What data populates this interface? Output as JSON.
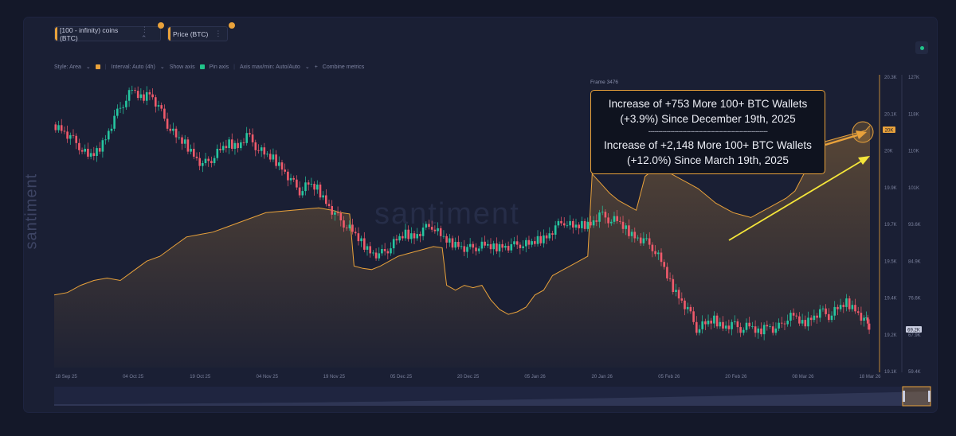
{
  "metrics": [
    {
      "label": "[100 - infinity) coins (BTC)",
      "color": "#e9a23b"
    },
    {
      "label": "Price (BTC)",
      "color": "#e9a23b"
    }
  ],
  "toolbar": {
    "style": "Style: Area",
    "interval": "Interval: Auto (4h)",
    "show_axis": "Show axis",
    "pin_axis": "Pin axis",
    "axis_maxmin": "Axis max/min: Auto/Auto",
    "combine": "Combine metrics"
  },
  "brand": "santiment",
  "watermark": "santiment",
  "frame_label": "Frame 3476",
  "annotation": {
    "line1": "Increase of +753 More 100+ BTC Wallets",
    "line2": "(+3.9%) Since December 19th, 2025",
    "divider": "------------------------------------------------------------",
    "line3": "Increase of +2,148 More 100+ BTC Wallets",
    "line4": "(+12.0%) Since March 19th, 2025"
  },
  "colors": {
    "area_line": "#e9a23b",
    "candle_up": "#26c6a0",
    "candle_down": "#ef5a6b",
    "arrow": "#f5e63a"
  },
  "chart_data": {
    "type": "area",
    "title": "",
    "x_ticks": [
      "18 Sep 25",
      "04 Oct 25",
      "19 Oct 25",
      "04 Nov 25",
      "19 Nov 25",
      "05 Dec 25",
      "20 Dec 25",
      "05 Jan 26",
      "20 Jan 26",
      "05 Feb 26",
      "20 Feb 26",
      "08 Mar 26",
      "18 Mar 26"
    ],
    "y_left_ticks": [
      "20.3K",
      "20.1K",
      "20K",
      "19.9K",
      "19.7K",
      "19.5K",
      "19.4K",
      "19.2K",
      "19.1K"
    ],
    "y_right_ticks": [
      "127K",
      "118K",
      "110K",
      "101K",
      "93.6K",
      "84.9K",
      "76.6K",
      "67.9K",
      "59.4K"
    ],
    "y_left_label_current": "20K",
    "y_right_label_current": "69.2K",
    "ylim_left": [
      19100,
      20300
    ],
    "ylim_right": [
      59400,
      127000
    ],
    "series": [
      {
        "name": "[100 - infinity) coins (BTC)",
        "axis": "left",
        "points": [
          [
            0,
            19400
          ],
          [
            3,
            19410
          ],
          [
            6,
            19440
          ],
          [
            9,
            19460
          ],
          [
            12,
            19470
          ],
          [
            15,
            19460
          ],
          [
            18,
            19500
          ],
          [
            21,
            19540
          ],
          [
            24,
            19560
          ],
          [
            27,
            19600
          ],
          [
            30,
            19640
          ],
          [
            33,
            19650
          ],
          [
            36,
            19660
          ],
          [
            39,
            19680
          ],
          [
            42,
            19700
          ],
          [
            45,
            19720
          ],
          [
            48,
            19740
          ],
          [
            51,
            19745
          ],
          [
            54,
            19750
          ],
          [
            57,
            19755
          ],
          [
            60,
            19760
          ],
          [
            63,
            19750
          ],
          [
            65,
            19740
          ],
          [
            67,
            19735
          ],
          [
            68,
            19520
          ],
          [
            70,
            19510
          ],
          [
            72,
            19505
          ],
          [
            74,
            19520
          ],
          [
            76,
            19540
          ],
          [
            78,
            19560
          ],
          [
            80,
            19570
          ],
          [
            82,
            19580
          ],
          [
            84,
            19590
          ],
          [
            86,
            19600
          ],
          [
            88,
            19595
          ],
          [
            89,
            19440
          ],
          [
            91,
            19420
          ],
          [
            93,
            19440
          ],
          [
            95,
            19430
          ],
          [
            97,
            19440
          ],
          [
            99,
            19380
          ],
          [
            101,
            19340
          ],
          [
            103,
            19320
          ],
          [
            105,
            19330
          ],
          [
            107,
            19350
          ],
          [
            109,
            19400
          ],
          [
            111,
            19420
          ],
          [
            113,
            19480
          ],
          [
            115,
            19500
          ],
          [
            117,
            19520
          ],
          [
            119,
            19540
          ],
          [
            121,
            19560
          ],
          [
            122,
            19900
          ],
          [
            124,
            19860
          ],
          [
            126,
            19820
          ],
          [
            128,
            19790
          ],
          [
            130,
            19770
          ],
          [
            132,
            19750
          ],
          [
            134,
            19890
          ],
          [
            136,
            19920
          ],
          [
            138,
            19910
          ],
          [
            140,
            19900
          ],
          [
            142,
            19880
          ],
          [
            144,
            19860
          ],
          [
            146,
            19840
          ],
          [
            148,
            19810
          ],
          [
            150,
            19780
          ],
          [
            152,
            19760
          ],
          [
            154,
            19740
          ],
          [
            156,
            19730
          ],
          [
            158,
            19720
          ],
          [
            160,
            19740
          ],
          [
            162,
            19760
          ],
          [
            164,
            19780
          ],
          [
            166,
            19800
          ],
          [
            168,
            19830
          ],
          [
            170,
            19900
          ],
          [
            172,
            20010
          ],
          [
            174,
            20030
          ],
          [
            176,
            20040
          ],
          [
            178,
            20050
          ],
          [
            180,
            20060
          ],
          [
            182,
            20070
          ],
          [
            184,
            20080
          ],
          [
            185,
            20100
          ]
        ]
      },
      {
        "name": "Price (BTC)",
        "axis": "right",
        "style": "candles",
        "points": [
          [
            0,
            116000
          ],
          [
            2,
            115000
          ],
          [
            4,
            113000
          ],
          [
            6,
            111000
          ],
          [
            8,
            108500
          ],
          [
            10,
            109500
          ],
          [
            12,
            113000
          ],
          [
            14,
            117500
          ],
          [
            16,
            121000
          ],
          [
            18,
            124000
          ],
          [
            20,
            122000
          ],
          [
            22,
            123500
          ],
          [
            24,
            120000
          ],
          [
            26,
            116000
          ],
          [
            28,
            113000
          ],
          [
            30,
            111500
          ],
          [
            32,
            109000
          ],
          [
            34,
            106500
          ],
          [
            36,
            108000
          ],
          [
            38,
            110000
          ],
          [
            40,
            111500
          ],
          [
            42,
            111000
          ],
          [
            44,
            113500
          ],
          [
            46,
            111000
          ],
          [
            48,
            109000
          ],
          [
            50,
            108000
          ],
          [
            52,
            106000
          ],
          [
            54,
            103000
          ],
          [
            56,
            100500
          ],
          [
            58,
            102000
          ],
          [
            60,
            101000
          ],
          [
            62,
            98000
          ],
          [
            64,
            95000
          ],
          [
            66,
            93000
          ],
          [
            68,
            91000
          ],
          [
            70,
            88500
          ],
          [
            72,
            86500
          ],
          [
            74,
            85500
          ],
          [
            76,
            87000
          ],
          [
            78,
            89000
          ],
          [
            80,
            90500
          ],
          [
            82,
            90000
          ],
          [
            84,
            91500
          ],
          [
            86,
            92500
          ],
          [
            88,
            90000
          ],
          [
            90,
            88500
          ],
          [
            92,
            88000
          ],
          [
            94,
            87000
          ],
          [
            96,
            87500
          ],
          [
            98,
            87800
          ],
          [
            100,
            87300
          ],
          [
            102,
            87800
          ],
          [
            104,
            87600
          ],
          [
            106,
            88200
          ],
          [
            108,
            88000
          ],
          [
            110,
            89000
          ],
          [
            112,
            90000
          ],
          [
            114,
            92000
          ],
          [
            116,
            93500
          ],
          [
            118,
            92000
          ],
          [
            120,
            92500
          ],
          [
            122,
            93000
          ],
          [
            124,
            95000
          ],
          [
            126,
            94000
          ],
          [
            128,
            93500
          ],
          [
            130,
            91500
          ],
          [
            132,
            90000
          ],
          [
            134,
            89000
          ],
          [
            136,
            87500
          ],
          [
            138,
            84000
          ],
          [
            140,
            79000
          ],
          [
            142,
            76000
          ],
          [
            144,
            73000
          ],
          [
            146,
            68500
          ],
          [
            148,
            69500
          ],
          [
            150,
            70500
          ],
          [
            152,
            69000
          ],
          [
            154,
            69500
          ],
          [
            156,
            68500
          ],
          [
            158,
            69000
          ],
          [
            160,
            67500
          ],
          [
            162,
            69500
          ],
          [
            164,
            68000
          ],
          [
            166,
            70500
          ],
          [
            168,
            71500
          ],
          [
            170,
            69500
          ],
          [
            172,
            71000
          ],
          [
            174,
            72500
          ],
          [
            176,
            71500
          ],
          [
            178,
            73000
          ],
          [
            180,
            74500
          ],
          [
            182,
            73000
          ],
          [
            184,
            70500
          ],
          [
            185,
            69200
          ]
        ]
      }
    ],
    "legend": "top-left"
  }
}
